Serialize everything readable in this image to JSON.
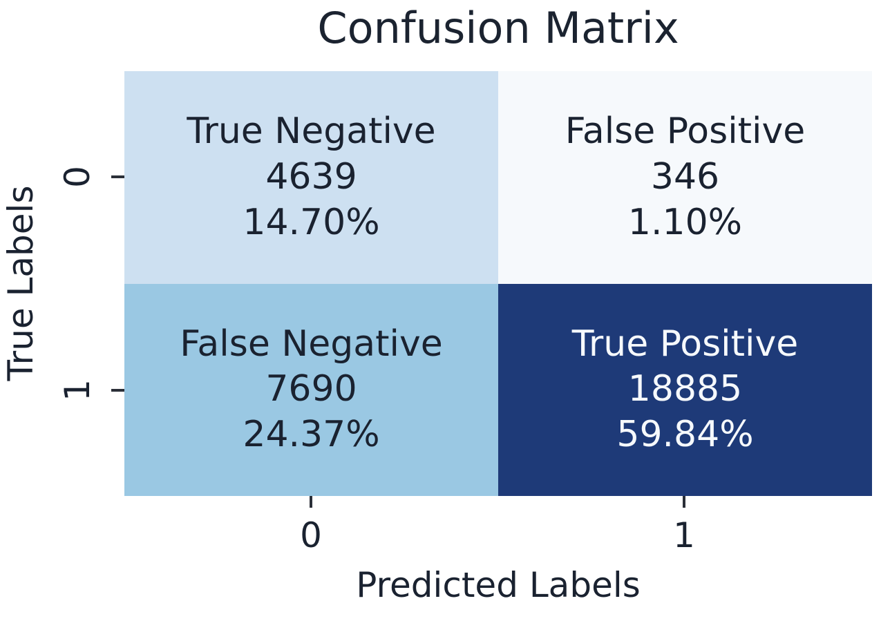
{
  "chart_data": {
    "type": "heatmap",
    "title": "Confusion Matrix",
    "xlabel": "Predicted Labels",
    "ylabel": "True Labels",
    "x_tick_labels": [
      "0",
      "1"
    ],
    "y_tick_labels": [
      "0",
      "1"
    ],
    "values": [
      [
        4639,
        346
      ],
      [
        7690,
        18885
      ]
    ],
    "percentages": [
      [
        "14.70%",
        "1.10%"
      ],
      [
        "24.37%",
        "59.84%"
      ]
    ],
    "legend": "none",
    "grid": false,
    "cells": [
      {
        "name": "true-negative",
        "row": "0",
        "col": "0",
        "label": "True Negative",
        "count": "4639",
        "percent": "14.70%",
        "bg": "#cde0f1",
        "fg": "#1a2230"
      },
      {
        "name": "false-positive",
        "row": "0",
        "col": "1",
        "label": "False Positive",
        "count": "346",
        "percent": "1.10%",
        "bg": "#f6f9fc",
        "fg": "#1a2230"
      },
      {
        "name": "false-negative",
        "row": "1",
        "col": "0",
        "label": "False Negative",
        "count": "7690",
        "percent": "24.37%",
        "bg": "#9ac8e3",
        "fg": "#1a2230"
      },
      {
        "name": "true-positive",
        "row": "1",
        "col": "1",
        "label": "True Positive",
        "count": "18885",
        "percent": "59.84%",
        "bg": "#1e3a78",
        "fg": "#f6f9fc"
      }
    ],
    "colors": {
      "background": "#ffffff",
      "dark_text": "#1a2230",
      "light_text": "#f6f9fc",
      "tick_color": "#2b2f38"
    }
  }
}
